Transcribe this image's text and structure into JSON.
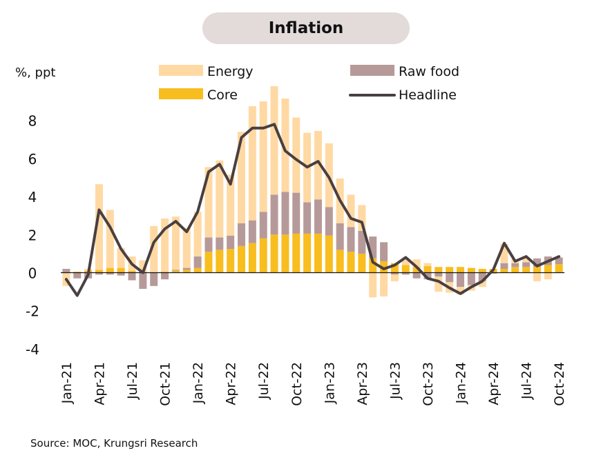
{
  "title": "Inflation",
  "source": "Source: MOC, Krungsri Research",
  "chart_data": {
    "type": "bar",
    "ylabel": "%, ppt",
    "ylim": [
      -4,
      8.5
    ],
    "yticks": [
      -4,
      -2,
      0,
      2,
      4,
      6,
      8
    ],
    "categories": [
      "Jan-21",
      "Feb-21",
      "Mar-21",
      "Apr-21",
      "May-21",
      "Jun-21",
      "Jul-21",
      "Aug-21",
      "Sep-21",
      "Oct-21",
      "Nov-21",
      "Dec-21",
      "Jan-22",
      "Feb-22",
      "Mar-22",
      "Apr-22",
      "May-22",
      "Jun-22",
      "Jul-22",
      "Aug-22",
      "Sep-22",
      "Oct-22",
      "Nov-22",
      "Dec-22",
      "Jan-23",
      "Feb-23",
      "Mar-23",
      "Apr-23",
      "May-23",
      "Jun-23",
      "Jul-23",
      "Aug-23",
      "Sep-23",
      "Oct-23",
      "Nov-23",
      "Dec-23",
      "Jan-24",
      "Feb-24",
      "Mar-24",
      "Apr-24",
      "May-24",
      "Jun-24",
      "Jul-24",
      "Aug-24",
      "Sep-24",
      "Oct-24"
    ],
    "tick_labels": [
      "Jan-21",
      "Apr-21",
      "Jul-21",
      "Oct-21",
      "Jan-22",
      "Apr-22",
      "Jul-22",
      "Oct-22",
      "Jan-23",
      "Apr-23",
      "Jul-23",
      "Oct-23",
      "Jan-24",
      "Apr-24",
      "Jul-24",
      "Oct-24"
    ],
    "legend": [
      "Energy",
      "Raw food",
      "Core",
      "Headline"
    ],
    "series": [
      {
        "name": "Core",
        "kind": "bar",
        "color": "#f8bd1f",
        "values": [
          0.0,
          0.05,
          0.1,
          0.15,
          0.25,
          0.25,
          0.1,
          0.05,
          0.0,
          0.05,
          0.1,
          0.15,
          0.25,
          1.1,
          1.2,
          1.25,
          1.4,
          1.55,
          1.8,
          2.0,
          2.0,
          2.05,
          2.05,
          2.05,
          1.95,
          1.2,
          1.1,
          1.0,
          0.75,
          0.6,
          0.5,
          0.4,
          0.3,
          0.35,
          0.3,
          0.3,
          0.3,
          0.25,
          0.2,
          0.2,
          0.2,
          0.3,
          0.3,
          0.3,
          0.4,
          0.45
        ]
      },
      {
        "name": "Raw food",
        "kind": "bar",
        "color": "#b69a99",
        "values": [
          0.2,
          -0.3,
          -0.3,
          -0.1,
          -0.1,
          -0.15,
          -0.4,
          -0.85,
          -0.7,
          -0.35,
          0.05,
          0.1,
          0.6,
          0.75,
          0.65,
          0.7,
          1.2,
          1.2,
          1.4,
          2.1,
          2.25,
          2.15,
          1.65,
          1.8,
          1.5,
          1.4,
          1.3,
          1.2,
          1.15,
          1.0,
          -0.1,
          -0.1,
          -0.3,
          -0.35,
          -0.2,
          -0.5,
          -0.75,
          -0.65,
          -0.45,
          -0.05,
          0.3,
          0.2,
          0.25,
          0.45,
          0.45,
          0.35
        ]
      },
      {
        "name": "Energy",
        "kind": "bar",
        "color": "#ffd9a3",
        "values": [
          -0.7,
          0.0,
          0.1,
          4.5,
          3.05,
          1.05,
          0.75,
          0.6,
          2.45,
          2.8,
          2.8,
          2.1,
          2.35,
          3.7,
          4.05,
          3.2,
          4.8,
          6.0,
          5.8,
          5.7,
          4.9,
          3.95,
          3.65,
          3.6,
          3.35,
          2.35,
          1.7,
          1.35,
          -1.3,
          -1.25,
          -0.35,
          0.35,
          0.4,
          0.15,
          -0.8,
          -0.55,
          -0.4,
          -0.3,
          -0.3,
          0.0,
          1.0,
          0.2,
          0.25,
          -0.45,
          -0.35,
          0.0
        ]
      },
      {
        "name": "Headline",
        "kind": "line",
        "color": "#4a3f40",
        "values": [
          -0.35,
          -1.2,
          -0.1,
          3.3,
          2.4,
          1.25,
          0.45,
          0.0,
          1.6,
          2.3,
          2.7,
          2.15,
          3.2,
          5.3,
          5.7,
          4.65,
          7.1,
          7.6,
          7.6,
          7.8,
          6.4,
          5.95,
          5.55,
          5.85,
          5.0,
          3.8,
          2.85,
          2.65,
          0.55,
          0.2,
          0.4,
          0.8,
          0.3,
          -0.3,
          -0.45,
          -0.8,
          -1.1,
          -0.75,
          -0.45,
          0.15,
          1.55,
          0.6,
          0.85,
          0.35,
          0.6,
          0.85
        ]
      }
    ]
  }
}
